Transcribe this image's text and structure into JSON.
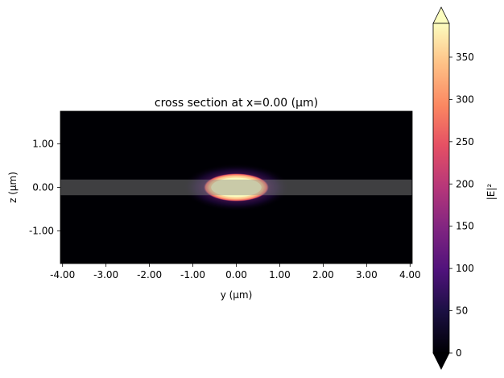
{
  "chart_data": {
    "type": "heatmap",
    "title": "cross section at x=0.00 (μm)",
    "xlabel": "y (μm)",
    "ylabel": "z (μm)",
    "xlim": [
      -4.05,
      4.05
    ],
    "ylim": [
      -1.75,
      1.75
    ],
    "x_ticks": [
      -4.0,
      -3.0,
      -2.0,
      -1.0,
      0.0,
      1.0,
      2.0,
      3.0,
      4.0
    ],
    "x_tick_labels": [
      "-4.00",
      "-3.00",
      "-2.00",
      "-1.00",
      "0.00",
      "1.00",
      "2.00",
      "3.00",
      "4.00"
    ],
    "y_ticks": [
      1.0,
      0.0,
      -1.0
    ],
    "y_tick_labels": [
      "1.00",
      "0.00",
      "-1.00"
    ],
    "colormap": "magma",
    "field": {
      "description": "|E|² mode intensity, saturated core",
      "center": [
        0.0,
        0.0
      ],
      "peak": 390
    },
    "overlay_band": {
      "z_range": [
        -0.18,
        0.18
      ],
      "color": "#8c8c8c",
      "opacity": 0.45
    },
    "colorbar": {
      "label": "|E|²",
      "range": [
        0,
        390
      ],
      "extend": "both",
      "ticks": [
        0,
        50,
        100,
        150,
        200,
        250,
        300,
        350
      ],
      "tick_labels": [
        "0",
        "50",
        "100",
        "150",
        "200",
        "250",
        "300",
        "350"
      ]
    }
  }
}
